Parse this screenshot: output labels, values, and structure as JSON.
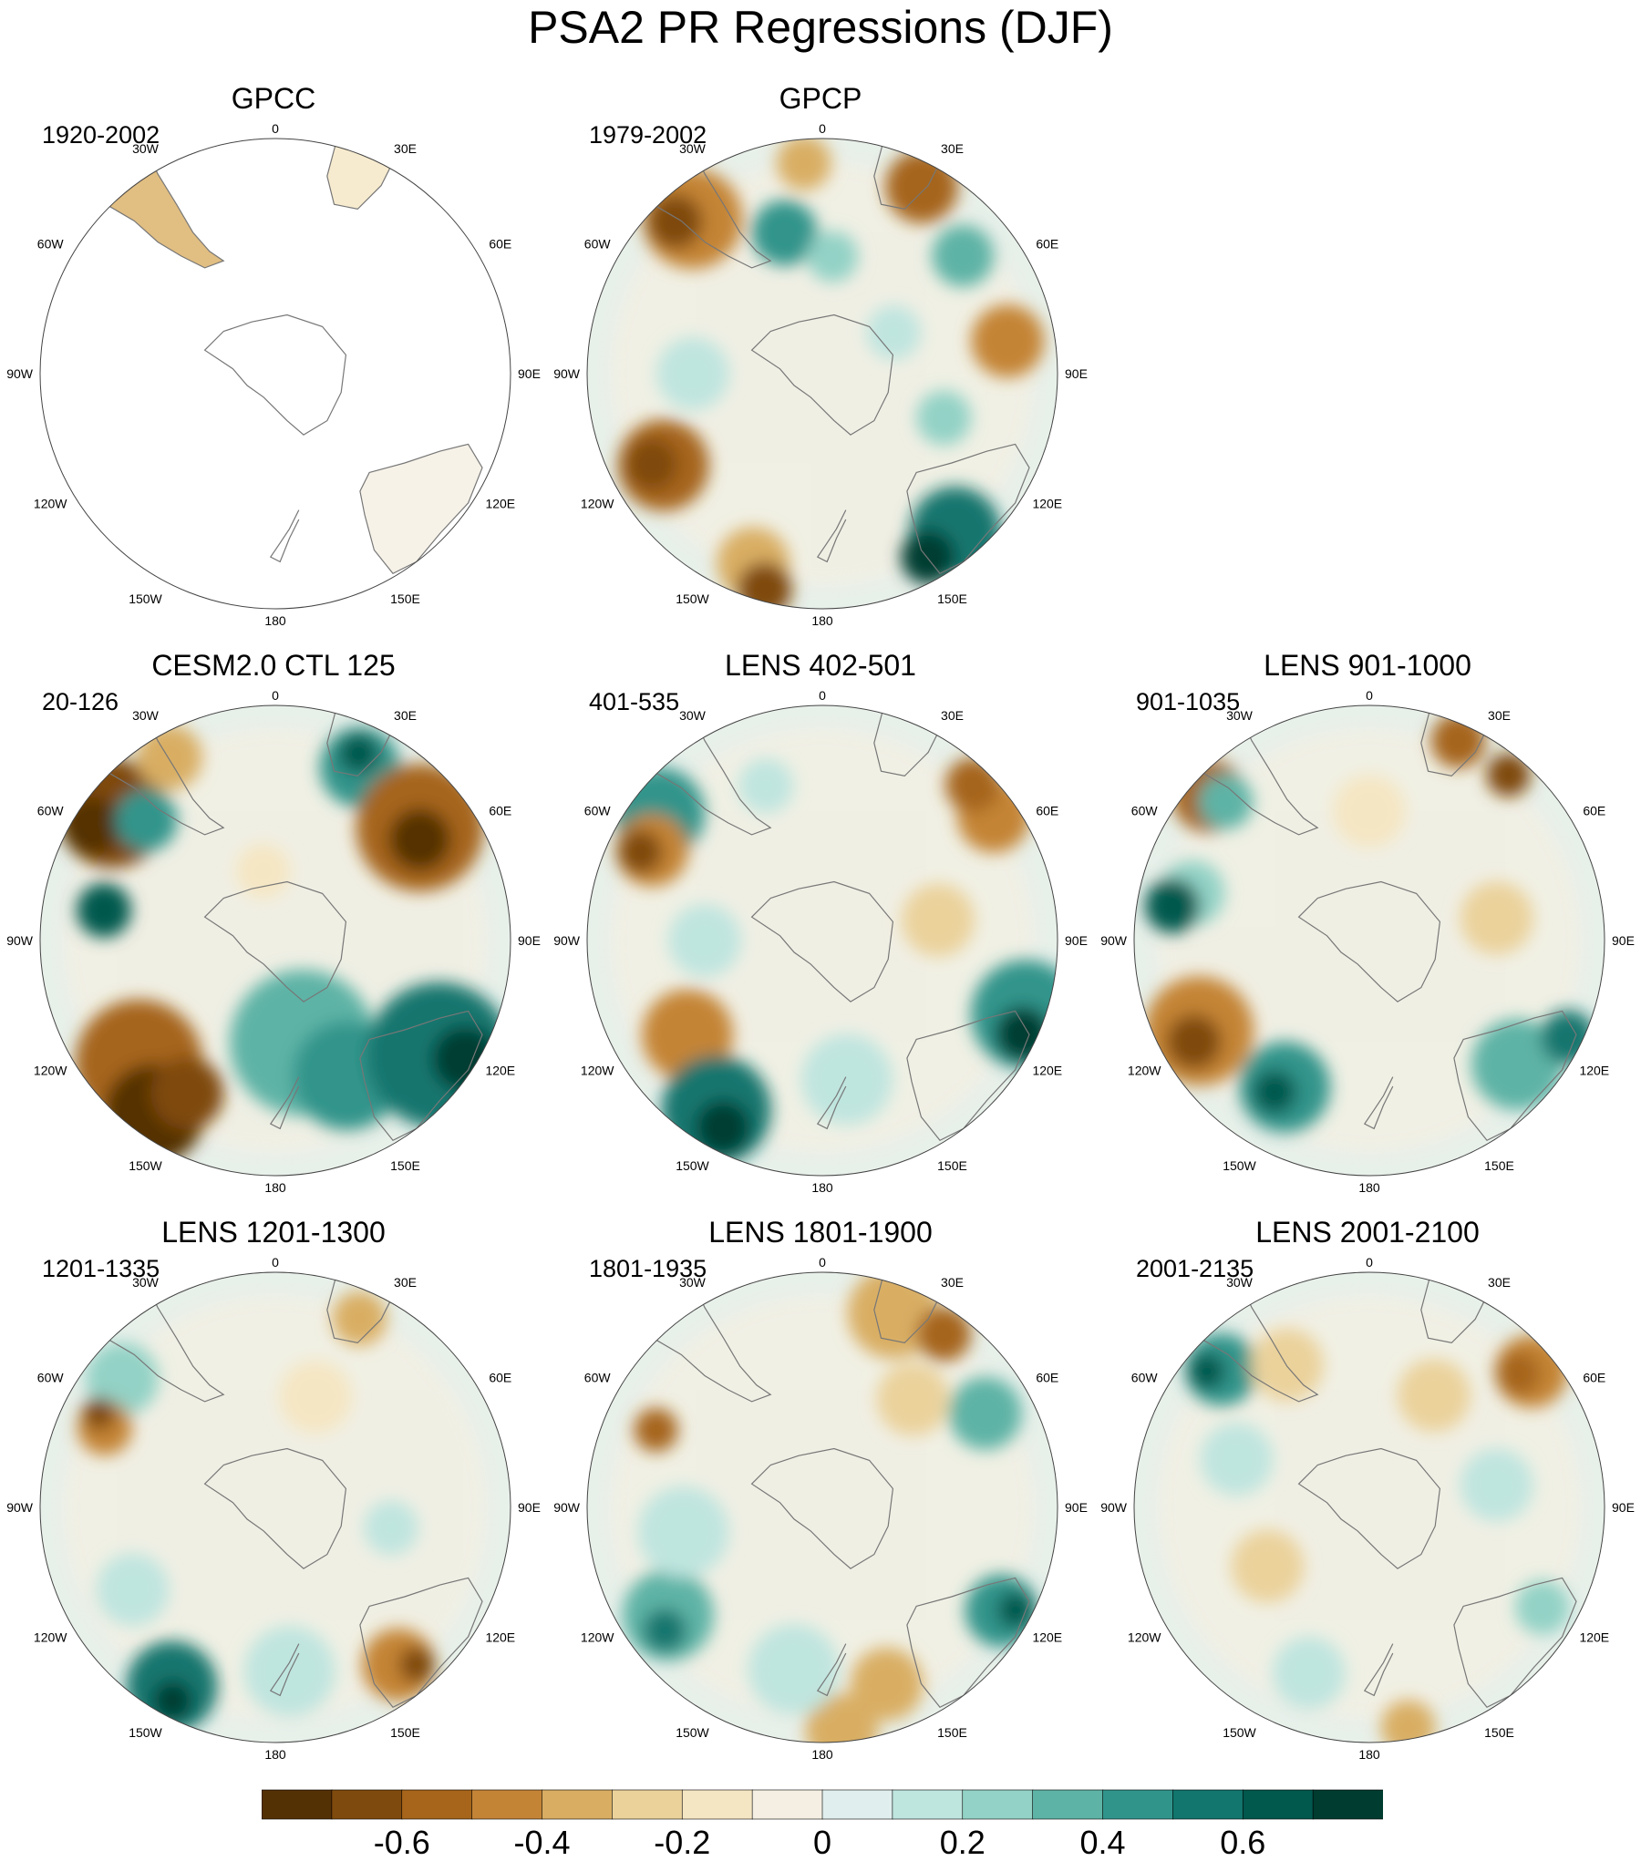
{
  "figure": {
    "title": "PSA2 PR Regressions (DJF)"
  },
  "longitude_labels": [
    "0",
    "30E",
    "60E",
    "90E",
    "120E",
    "150E",
    "180",
    "150W",
    "120W",
    "90W",
    "60W",
    "30W"
  ],
  "panels": [
    {
      "id": "gpcc",
      "title": "GPCC",
      "period": "1920-2002",
      "land_only": true
    },
    {
      "id": "gpcp",
      "title": "GPCP",
      "period": "1979-2002",
      "land_only": false
    },
    {
      "id": "cesm2-ctl",
      "title": "CESM2.0 CTL 125",
      "period": "20-126",
      "land_only": false
    },
    {
      "id": "lens-402-501",
      "title": "LENS 402-501",
      "period": "401-535",
      "land_only": false
    },
    {
      "id": "lens-901-1000",
      "title": "LENS 901-1000",
      "period": "901-1035",
      "land_only": false
    },
    {
      "id": "lens-1201-1300",
      "title": "LENS 1201-1300",
      "period": "1201-1335",
      "land_only": false
    },
    {
      "id": "lens-1801-1900",
      "title": "LENS 1801-1900",
      "period": "1801-1935",
      "land_only": false
    },
    {
      "id": "lens-2001-2100",
      "title": "LENS 2001-2100",
      "period": "2001-2135",
      "land_only": false
    }
  ],
  "colorbar": {
    "colors": [
      "#543005",
      "#7f4a0d",
      "#a6651a",
      "#c48436",
      "#d9ae63",
      "#ebd29b",
      "#f5e6c3",
      "#f4efe2",
      "#e0efee",
      "#bfe5df",
      "#93d2c6",
      "#5db3a6",
      "#30948b",
      "#12766e",
      "#01584d",
      "#003c30"
    ],
    "ticks": [
      "-0.6",
      "-0.4",
      "-0.2",
      "0",
      "0.2",
      "0.4",
      "0.6"
    ]
  }
}
